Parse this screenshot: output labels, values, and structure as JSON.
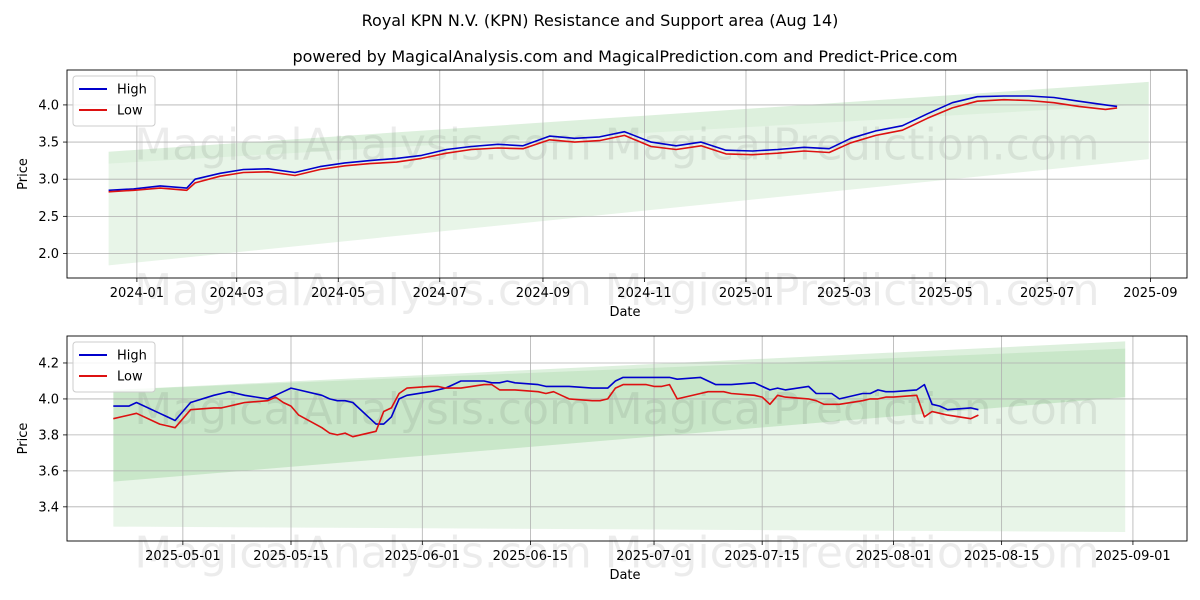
{
  "title": "Royal KPN N.V. (KPN) Resistance and Support area (Aug 14)",
  "subtitle": "powered by MagicalAnalysis.com and MagicalPrediction.com and Predict-Price.com",
  "watermark_left": "MagicalAnalysis.com",
  "watermark_right": "MagicalPrediction.com",
  "colors": {
    "high": "#0000cc",
    "low": "#dd1111",
    "band_dark": "#2ca02c",
    "band_light": "#2ca02c",
    "grid": "#b0b0b0"
  },
  "chart_data": [
    {
      "type": "line",
      "xlabel": "Date",
      "ylabel": "Price",
      "x_range": [
        "2023-11-20",
        "2025-09-23"
      ],
      "ylim": [
        1.67,
        4.47
      ],
      "x_ticks": [
        "2024-01-01",
        "2024-03-01",
        "2024-05-01",
        "2024-07-01",
        "2024-09-01",
        "2024-11-01",
        "2025-01-01",
        "2025-03-01",
        "2025-05-01",
        "2025-07-01",
        "2025-09-01"
      ],
      "x_tick_labels": [
        "2024-01",
        "2024-03",
        "2024-05",
        "2024-07",
        "2024-09",
        "2024-11",
        "2025-01",
        "2025-03",
        "2025-05",
        "2025-07",
        "2025-09"
      ],
      "y_ticks": [
        2.0,
        2.5,
        3.0,
        3.5,
        4.0
      ],
      "y_tick_labels": [
        "2.0",
        "2.5",
        "3.0",
        "3.5",
        "4.0"
      ],
      "grid": true,
      "legend": "top-left",
      "bands": [
        {
          "kind": "resistance",
          "x": [
            "2023-12-15",
            "2025-08-31"
          ],
          "upper": [
            3.37,
            4.31
          ],
          "lower": [
            3.21,
            4.01
          ]
        },
        {
          "kind": "support",
          "x": [
            "2023-12-15",
            "2025-08-31"
          ],
          "upper": [
            3.21,
            4.01
          ],
          "lower": [
            1.84,
            3.27
          ]
        }
      ],
      "series": [
        {
          "name": "High",
          "x": [
            "2023-12-15",
            "2023-12-30",
            "2024-01-15",
            "2024-01-31",
            "2024-02-05",
            "2024-02-20",
            "2024-03-05",
            "2024-03-20",
            "2024-04-05",
            "2024-04-20",
            "2024-05-05",
            "2024-05-20",
            "2024-06-05",
            "2024-06-20",
            "2024-07-05",
            "2024-07-20",
            "2024-08-05",
            "2024-08-20",
            "2024-09-05",
            "2024-09-20",
            "2024-10-05",
            "2024-10-20",
            "2024-11-05",
            "2024-11-20",
            "2024-12-05",
            "2024-12-20",
            "2025-01-05",
            "2025-01-20",
            "2025-02-05",
            "2025-02-20",
            "2025-03-05",
            "2025-03-20",
            "2025-04-05",
            "2025-04-20",
            "2025-05-05",
            "2025-05-20",
            "2025-06-05",
            "2025-06-20",
            "2025-07-05",
            "2025-07-20",
            "2025-08-05",
            "2025-08-12"
          ],
          "values": [
            2.85,
            2.87,
            2.91,
            2.88,
            3.0,
            3.08,
            3.13,
            3.14,
            3.09,
            3.17,
            3.22,
            3.25,
            3.28,
            3.32,
            3.4,
            3.44,
            3.47,
            3.45,
            3.58,
            3.55,
            3.57,
            3.64,
            3.5,
            3.45,
            3.5,
            3.39,
            3.38,
            3.4,
            3.43,
            3.41,
            3.55,
            3.65,
            3.72,
            3.88,
            4.03,
            4.11,
            4.12,
            4.12,
            4.1,
            4.05,
            4.0,
            3.98
          ]
        },
        {
          "name": "Low",
          "x": [
            "2023-12-15",
            "2023-12-30",
            "2024-01-15",
            "2024-01-31",
            "2024-02-05",
            "2024-02-20",
            "2024-03-05",
            "2024-03-20",
            "2024-04-05",
            "2024-04-20",
            "2024-05-05",
            "2024-05-20",
            "2024-06-05",
            "2024-06-20",
            "2024-07-05",
            "2024-07-20",
            "2024-08-05",
            "2024-08-20",
            "2024-09-05",
            "2024-09-20",
            "2024-10-05",
            "2024-10-20",
            "2024-11-05",
            "2024-11-20",
            "2024-12-05",
            "2024-12-20",
            "2025-01-05",
            "2025-01-20",
            "2025-02-05",
            "2025-02-20",
            "2025-03-05",
            "2025-03-20",
            "2025-04-05",
            "2025-04-20",
            "2025-05-05",
            "2025-05-20",
            "2025-06-05",
            "2025-06-20",
            "2025-07-05",
            "2025-07-20",
            "2025-08-05",
            "2025-08-12"
          ],
          "values": [
            2.83,
            2.85,
            2.88,
            2.85,
            2.95,
            3.04,
            3.09,
            3.1,
            3.05,
            3.13,
            3.18,
            3.21,
            3.23,
            3.28,
            3.35,
            3.4,
            3.42,
            3.41,
            3.53,
            3.5,
            3.52,
            3.59,
            3.44,
            3.4,
            3.45,
            3.34,
            3.33,
            3.35,
            3.38,
            3.36,
            3.49,
            3.59,
            3.66,
            3.82,
            3.96,
            4.05,
            4.07,
            4.06,
            4.03,
            3.98,
            3.94,
            3.96
          ]
        }
      ]
    },
    {
      "type": "line",
      "xlabel": "Date",
      "ylabel": "Price",
      "x_range": [
        "2025-04-16",
        "2025-09-08"
      ],
      "ylim": [
        3.21,
        4.35
      ],
      "x_ticks": [
        "2025-05-01",
        "2025-05-15",
        "2025-06-01",
        "2025-06-15",
        "2025-07-01",
        "2025-07-15",
        "2025-08-01",
        "2025-08-15",
        "2025-09-01"
      ],
      "x_tick_labels": [
        "2025-05-01",
        "2025-05-15",
        "2025-06-01",
        "2025-06-15",
        "2025-07-01",
        "2025-07-15",
        "2025-08-01",
        "2025-08-15",
        "2025-09-01"
      ],
      "y_ticks": [
        3.4,
        3.6,
        3.8,
        4.0,
        4.2
      ],
      "y_tick_labels": [
        "3.4",
        "3.6",
        "3.8",
        "4.0",
        "4.2"
      ],
      "grid": true,
      "legend": "top-left",
      "bands": [
        {
          "kind": "resistance",
          "x": [
            "2025-04-22",
            "2025-08-31"
          ],
          "upper": [
            4.05,
            4.32
          ],
          "lower": [
            3.54,
            4.01
          ]
        },
        {
          "kind": "support",
          "x": [
            "2025-04-22",
            "2025-08-31"
          ],
          "upper": [
            4.05,
            4.28
          ],
          "lower": [
            3.29,
            3.26
          ]
        }
      ],
      "series": [
        {
          "name": "High",
          "x": [
            "2025-04-22",
            "2025-04-23",
            "2025-04-24",
            "2025-04-25",
            "2025-04-28",
            "2025-04-29",
            "2025-04-30",
            "2025-05-02",
            "2025-05-05",
            "2025-05-06",
            "2025-05-07",
            "2025-05-08",
            "2025-05-09",
            "2025-05-12",
            "2025-05-13",
            "2025-05-14",
            "2025-05-15",
            "2025-05-16",
            "2025-05-19",
            "2025-05-20",
            "2025-05-21",
            "2025-05-22",
            "2025-05-23",
            "2025-05-26",
            "2025-05-27",
            "2025-05-28",
            "2025-05-29",
            "2025-05-30",
            "2025-06-02",
            "2025-06-03",
            "2025-06-04",
            "2025-06-05",
            "2025-06-06",
            "2025-06-09",
            "2025-06-10",
            "2025-06-11",
            "2025-06-12",
            "2025-06-13",
            "2025-06-16",
            "2025-06-17",
            "2025-06-18",
            "2025-06-19",
            "2025-06-20",
            "2025-06-23",
            "2025-06-24",
            "2025-06-25",
            "2025-06-26",
            "2025-06-27",
            "2025-06-30",
            "2025-07-01",
            "2025-07-02",
            "2025-07-03",
            "2025-07-04",
            "2025-07-07",
            "2025-07-08",
            "2025-07-09",
            "2025-07-10",
            "2025-07-11",
            "2025-07-14",
            "2025-07-15",
            "2025-07-16",
            "2025-07-17",
            "2025-07-18",
            "2025-07-21",
            "2025-07-22",
            "2025-07-23",
            "2025-07-24",
            "2025-07-25",
            "2025-07-28",
            "2025-07-29",
            "2025-07-30",
            "2025-07-31",
            "2025-08-01",
            "2025-08-04",
            "2025-08-05",
            "2025-08-06",
            "2025-08-07",
            "2025-08-08",
            "2025-08-11",
            "2025-08-12"
          ],
          "values": [
            3.96,
            3.96,
            3.96,
            3.98,
            3.92,
            3.9,
            3.88,
            3.98,
            4.02,
            4.03,
            4.04,
            4.03,
            4.02,
            4.0,
            4.02,
            4.04,
            4.06,
            4.05,
            4.02,
            4.0,
            3.99,
            3.99,
            3.98,
            3.86,
            3.86,
            3.9,
            4.0,
            4.02,
            4.04,
            4.05,
            4.06,
            4.08,
            4.1,
            4.1,
            4.09,
            4.09,
            4.1,
            4.09,
            4.08,
            4.07,
            4.07,
            4.07,
            4.07,
            4.06,
            4.06,
            4.06,
            4.1,
            4.12,
            4.12,
            4.12,
            4.12,
            4.12,
            4.11,
            4.12,
            4.1,
            4.08,
            4.08,
            4.08,
            4.09,
            4.07,
            4.05,
            4.06,
            4.05,
            4.07,
            4.03,
            4.03,
            4.03,
            4.0,
            4.03,
            4.03,
            4.05,
            4.04,
            4.04,
            4.05,
            4.08,
            3.97,
            3.96,
            3.94,
            3.95,
            3.94
          ]
        },
        {
          "name": "Low",
          "x": [
            "2025-04-22",
            "2025-04-23",
            "2025-04-24",
            "2025-04-25",
            "2025-04-28",
            "2025-04-29",
            "2025-04-30",
            "2025-05-02",
            "2025-05-05",
            "2025-05-06",
            "2025-05-07",
            "2025-05-08",
            "2025-05-09",
            "2025-05-12",
            "2025-05-13",
            "2025-05-14",
            "2025-05-15",
            "2025-05-16",
            "2025-05-19",
            "2025-05-20",
            "2025-05-21",
            "2025-05-22",
            "2025-05-23",
            "2025-05-26",
            "2025-05-27",
            "2025-05-28",
            "2025-05-29",
            "2025-05-30",
            "2025-06-02",
            "2025-06-03",
            "2025-06-04",
            "2025-06-05",
            "2025-06-06",
            "2025-06-09",
            "2025-06-10",
            "2025-06-11",
            "2025-06-12",
            "2025-06-13",
            "2025-06-16",
            "2025-06-17",
            "2025-06-18",
            "2025-06-19",
            "2025-06-20",
            "2025-06-23",
            "2025-06-24",
            "2025-06-25",
            "2025-06-26",
            "2025-06-27",
            "2025-06-30",
            "2025-07-01",
            "2025-07-02",
            "2025-07-03",
            "2025-07-04",
            "2025-07-07",
            "2025-07-08",
            "2025-07-09",
            "2025-07-10",
            "2025-07-11",
            "2025-07-14",
            "2025-07-15",
            "2025-07-16",
            "2025-07-17",
            "2025-07-18",
            "2025-07-21",
            "2025-07-22",
            "2025-07-23",
            "2025-07-24",
            "2025-07-25",
            "2025-07-28",
            "2025-07-29",
            "2025-07-30",
            "2025-07-31",
            "2025-08-01",
            "2025-08-04",
            "2025-08-05",
            "2025-08-06",
            "2025-08-07",
            "2025-08-08",
            "2025-08-11",
            "2025-08-12"
          ],
          "values": [
            3.89,
            3.9,
            3.91,
            3.92,
            3.86,
            3.85,
            3.84,
            3.94,
            3.95,
            3.95,
            3.96,
            3.97,
            3.98,
            3.99,
            4.01,
            3.98,
            3.96,
            3.91,
            3.84,
            3.81,
            3.8,
            3.81,
            3.79,
            3.82,
            3.93,
            3.95,
            4.03,
            4.06,
            4.07,
            4.07,
            4.06,
            4.06,
            4.06,
            4.08,
            4.08,
            4.05,
            4.05,
            4.05,
            4.04,
            4.03,
            4.04,
            4.02,
            4.0,
            3.99,
            3.99,
            4.0,
            4.06,
            4.08,
            4.08,
            4.07,
            4.07,
            4.08,
            4.0,
            4.03,
            4.04,
            4.04,
            4.04,
            4.03,
            4.02,
            4.01,
            3.97,
            4.02,
            4.01,
            4.0,
            3.99,
            3.97,
            3.97,
            3.97,
            3.99,
            4.0,
            4.0,
            4.01,
            4.01,
            4.02,
            3.9,
            3.93,
            3.92,
            3.91,
            3.89,
            3.91
          ]
        }
      ]
    }
  ]
}
